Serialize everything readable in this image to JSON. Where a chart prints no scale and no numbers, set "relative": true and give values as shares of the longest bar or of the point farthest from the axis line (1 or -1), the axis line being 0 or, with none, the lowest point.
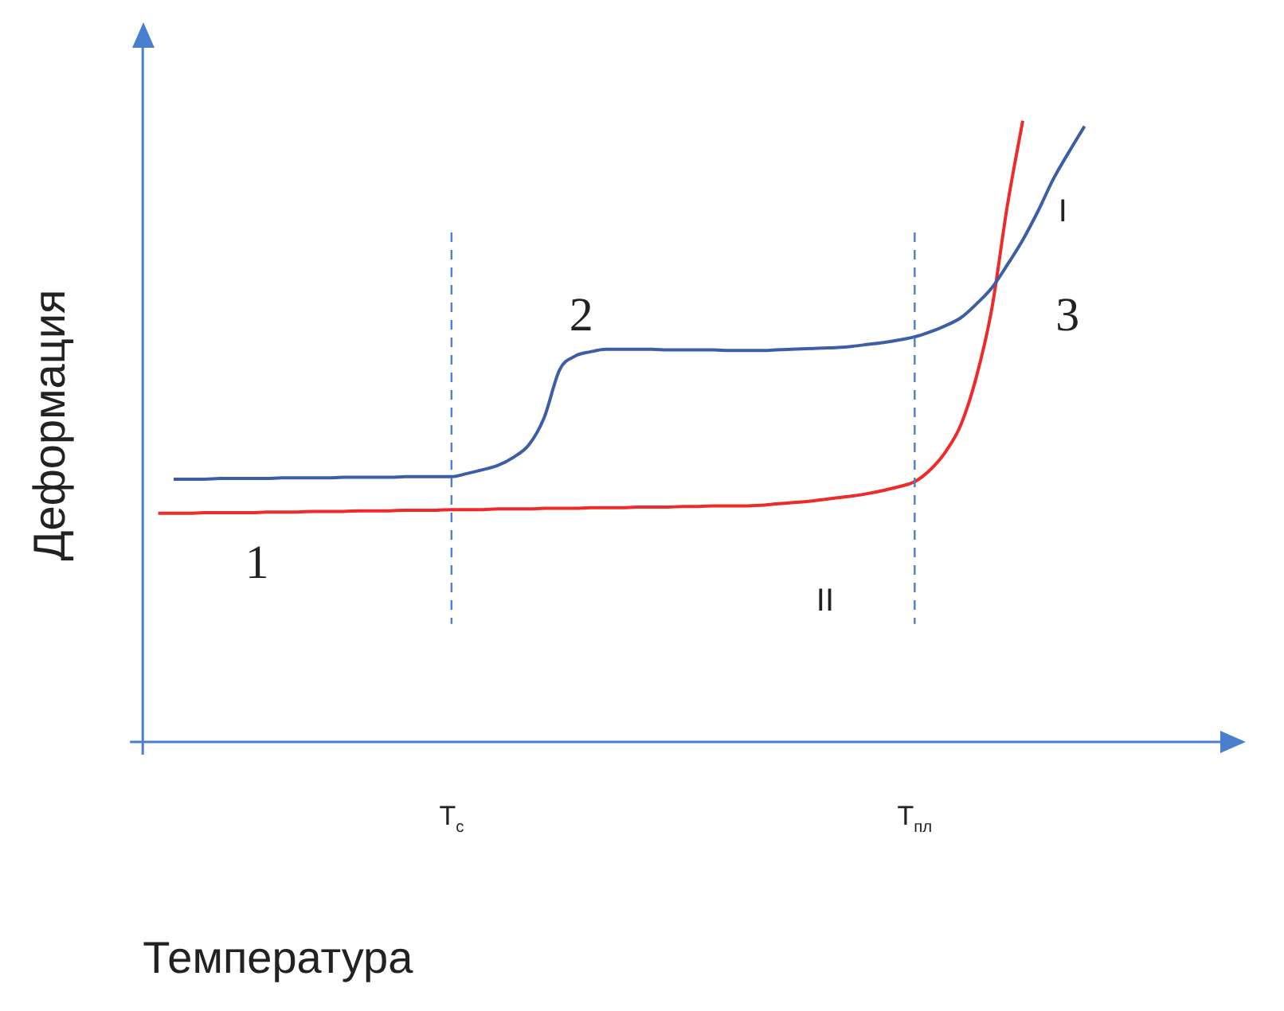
{
  "chart_data": {
    "type": "line",
    "relative": true,
    "xlabel": "Температура",
    "ylabel": "Деформация",
    "categories": [
      null,
      null,
      null,
      null,
      null,
      null,
      null,
      null,
      null,
      null,
      null,
      null,
      null,
      null,
      null,
      null,
      null,
      null,
      null,
      null,
      "T$_{с}$",
      null,
      null,
      null,
      null,
      null,
      null,
      null,
      null,
      null,
      null,
      null,
      null,
      null,
      null,
      null,
      null,
      null,
      null,
      null,
      null,
      null,
      null,
      null,
      null,
      null,
      null,
      null,
      null,
      null,
      "T$_{пл}$",
      null,
      null,
      null,
      null,
      null,
      null,
      null,
      null,
      null,
      null,
      null,
      null,
      null,
      null,
      null,
      null,
      null,
      null,
      null,
      null
    ],
    "series": [
      {
        "color": "#3b5ea6",
        "values": [
          null,
          null,
          0.423,
          0.423,
          0.423,
          0.424,
          0.424,
          0.424,
          0.424,
          0.425,
          0.425,
          0.425,
          0.425,
          0.426,
          0.426,
          0.426,
          0.426,
          0.427,
          0.427,
          0.427,
          0.427,
          0.432,
          0.438,
          0.445,
          0.458,
          0.478,
          0.522,
          0.599,
          0.621,
          0.628,
          0.632,
          0.632,
          0.632,
          0.632,
          0.631,
          0.631,
          0.631,
          0.631,
          0.63,
          0.63,
          0.63,
          0.631,
          0.632,
          0.633,
          0.634,
          0.635,
          0.637,
          0.64,
          0.643,
          0.647,
          0.652,
          0.66,
          0.67,
          0.683,
          0.705,
          0.731,
          0.768,
          0.808,
          0.855,
          0.907,
          0.95,
          0.991,
          null,
          null,
          null,
          null,
          null,
          null,
          null,
          null,
          null
        ]
      },
      {
        "color": "#ee2a2a",
        "values": [
          null,
          0.368,
          0.368,
          0.368,
          0.369,
          0.369,
          0.369,
          0.369,
          0.37,
          0.37,
          0.37,
          0.371,
          0.371,
          0.371,
          0.372,
          0.372,
          0.372,
          0.373,
          0.373,
          0.373,
          0.374,
          0.374,
          0.374,
          0.375,
          0.375,
          0.375,
          0.376,
          0.376,
          0.376,
          0.377,
          0.377,
          0.377,
          0.378,
          0.378,
          0.378,
          0.379,
          0.379,
          0.38,
          0.38,
          0.38,
          0.381,
          0.383,
          0.385,
          0.387,
          0.39,
          0.393,
          0.396,
          0.4,
          0.405,
          0.411,
          0.419,
          0.438,
          0.467,
          0.511,
          0.588,
          0.698,
          0.863,
          1,
          null,
          null,
          null,
          null,
          null,
          null,
          null,
          null,
          null,
          null,
          null,
          null,
          null
        ]
      }
    ],
    "ref_lines": [
      {
        "axis": "x",
        "value": "T$_{с}$",
        "color": "#4a7fd0",
        "line_style": "dashed"
      },
      {
        "axis": "x",
        "value": "T$_{пл}$",
        "color": "#4a7fd0",
        "line_style": "dashed"
      }
    ],
    "annotations": [
      "1",
      "2",
      "3",
      "I",
      "II"
    ],
    "grid": false,
    "legend": false,
    "line_style": "solid",
    "marker": "none"
  }
}
